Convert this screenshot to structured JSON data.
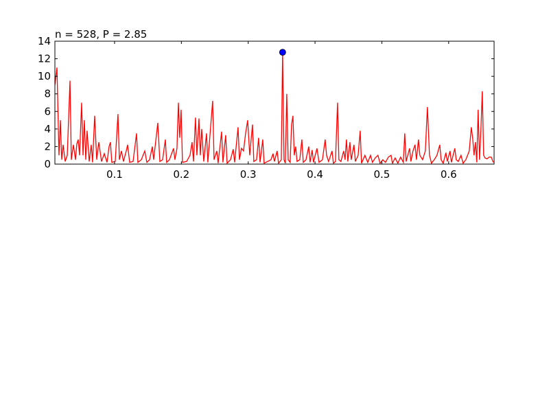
{
  "chart_data": {
    "type": "line",
    "title": "n = 528, P = 2.85",
    "x": [
      0.0107,
      0.0138,
      0.0168,
      0.0189,
      0.0209,
      0.023,
      0.0261,
      0.0292,
      0.0333,
      0.0353,
      0.0384,
      0.0415,
      0.0435,
      0.0456,
      0.0476,
      0.0507,
      0.0528,
      0.0548,
      0.0569,
      0.0589,
      0.062,
      0.0651,
      0.0671,
      0.0702,
      0.0733,
      0.0764,
      0.0805,
      0.0846,
      0.0887,
      0.0918,
      0.0938,
      0.0959,
      0.101,
      0.1051,
      0.1072,
      0.1103,
      0.1133,
      0.1175,
      0.1195,
      0.1226,
      0.1277,
      0.1329,
      0.1349,
      0.14,
      0.1452,
      0.1483,
      0.1524,
      0.1565,
      0.1585,
      0.1647,
      0.1678,
      0.1719,
      0.176,
      0.178,
      0.1821,
      0.1883,
      0.1903,
      0.1934,
      0.1955,
      0.1975,
      0.1996,
      0.2016,
      0.2078,
      0.2129,
      0.216,
      0.2181,
      0.2211,
      0.2232,
      0.2263,
      0.2283,
      0.2304,
      0.2335,
      0.2376,
      0.2396,
      0.2468,
      0.2489,
      0.253,
      0.255,
      0.2602,
      0.2622,
      0.2663,
      0.2684,
      0.2735,
      0.2776,
      0.2797,
      0.2848,
      0.2869,
      0.2899,
      0.293,
      0.2961,
      0.2992,
      0.3023,
      0.3064,
      0.3084,
      0.3125,
      0.3156,
      0.3177,
      0.3218,
      0.3238,
      0.329,
      0.3341,
      0.3372,
      0.3392,
      0.3433,
      0.3454,
      0.3495,
      0.3515,
      0.3536,
      0.3556,
      0.3577,
      0.3598,
      0.3628,
      0.3649,
      0.3669,
      0.369,
      0.3711,
      0.3731,
      0.3772,
      0.3803,
      0.3824,
      0.3865,
      0.3906,
      0.3926,
      0.3957,
      0.3977,
      0.4029,
      0.406,
      0.4111,
      0.4152,
      0.4173,
      0.4203,
      0.4255,
      0.4275,
      0.4306,
      0.4337,
      0.4357,
      0.4388,
      0.4429,
      0.445,
      0.447,
      0.4491,
      0.4522,
      0.4542,
      0.4583,
      0.4604,
      0.4645,
      0.4676,
      0.4696,
      0.4747,
      0.4789,
      0.483,
      0.486,
      0.4901,
      0.4942,
      0.4973,
      0.5014,
      0.5055,
      0.5097,
      0.5138,
      0.5158,
      0.5199,
      0.524,
      0.5281,
      0.5322,
      0.5343,
      0.5364,
      0.5415,
      0.5435,
      0.5466,
      0.5497,
      0.5518,
      0.5548,
      0.5569,
      0.561,
      0.5651,
      0.5682,
      0.5713,
      0.5743,
      0.5784,
      0.5825,
      0.5867,
      0.5887,
      0.5918,
      0.5959,
      0.5979,
      0.6021,
      0.6041,
      0.6092,
      0.6113,
      0.6144,
      0.6185,
      0.6216,
      0.6257,
      0.6308,
      0.6339,
      0.6359,
      0.638,
      0.64,
      0.6421,
      0.6441,
      0.6462,
      0.6483,
      0.6503,
      0.6524,
      0.6544,
      0.6575,
      0.6606,
      0.6637,
      0.6668
    ],
    "values": [
      9,
      11,
      1,
      5,
      0.5,
      2.2,
      0.3,
      1,
      9.5,
      0.5,
      2.2,
      0.5,
      2.3,
      2.8,
      1,
      7,
      1,
      5,
      0.5,
      3.8,
      0.3,
      2.2,
      0.2,
      5.5,
      0.5,
      2.5,
      0.3,
      1.2,
      0.2,
      2,
      2.5,
      0.2,
      0.3,
      5.7,
      0.5,
      1.5,
      0.3,
      1.5,
      2.2,
      0.2,
      0.3,
      3.5,
      0.2,
      0.5,
      1.5,
      0.2,
      0.5,
      2,
      0.5,
      4.7,
      0.3,
      0.5,
      2.8,
      0.2,
      0.5,
      1.8,
      0.5,
      1.8,
      7,
      3,
      6.2,
      0.2,
      0.3,
      1,
      2.5,
      0.3,
      5.3,
      1,
      5.2,
      1,
      4,
      0.3,
      3.5,
      0.2,
      7.2,
      0.5,
      1.5,
      0.1,
      3.7,
      0.2,
      3.3,
      0.1,
      0.5,
      1.7,
      0.2,
      4.2,
      0.5,
      1.8,
      1.5,
      3.5,
      5,
      1,
      4.5,
      0.3,
      0.5,
      3,
      0.2,
      2.8,
      0.1,
      0.3,
      0.5,
      1.2,
      0.3,
      1.5,
      0.1,
      0.5,
      12.74,
      0.5,
      0.1,
      8,
      0.5,
      0.2,
      4.5,
      5.5,
      1,
      2,
      0.3,
      0.5,
      2.8,
      0.2,
      0.5,
      2,
      0.2,
      1.6,
      0.2,
      1.8,
      0.2,
      0.5,
      2.8,
      1,
      0.3,
      1.5,
      0.1,
      0.3,
      7,
      0.5,
      0.3,
      1.5,
      0.5,
      2.8,
      0.3,
      2.5,
      0.5,
      2.2,
      0.3,
      1,
      3.8,
      0.1,
      1,
      0.2,
      1,
      0.2,
      0.7,
      1,
      0.1,
      0.5,
      0.2,
      0.8,
      1,
      0.1,
      0.7,
      0.1,
      0.8,
      0.2,
      3.5,
      0.3,
      1.8,
      0.3,
      1.5,
      2.2,
      0.5,
      2.8,
      1,
      0.5,
      1.5,
      6.5,
      1,
      0.1,
      0.5,
      1,
      2.2,
      0.5,
      0.1,
      1.3,
      0.3,
      1.5,
      0.2,
      1.8,
      0.5,
      0.3,
      1,
      0.1,
      0.5,
      1.5,
      4.2,
      3,
      1,
      2.5,
      0.2,
      6.2,
      0.5,
      4,
      8.3,
      1,
      0.7,
      0.6,
      0.8,
      0.8,
      0.2
    ],
    "color": "#ff0000",
    "highlight": {
      "x": 0.3515,
      "y": 12.74,
      "color": "#0000ff"
    },
    "xlim": [
      0.0107,
      0.668
    ],
    "ylim": [
      0,
      14
    ],
    "xticks": [
      0.1,
      0.2,
      0.3,
      0.4,
      0.5,
      0.6
    ],
    "yticks": [
      0,
      2,
      4,
      6,
      8,
      10,
      12,
      14
    ]
  }
}
